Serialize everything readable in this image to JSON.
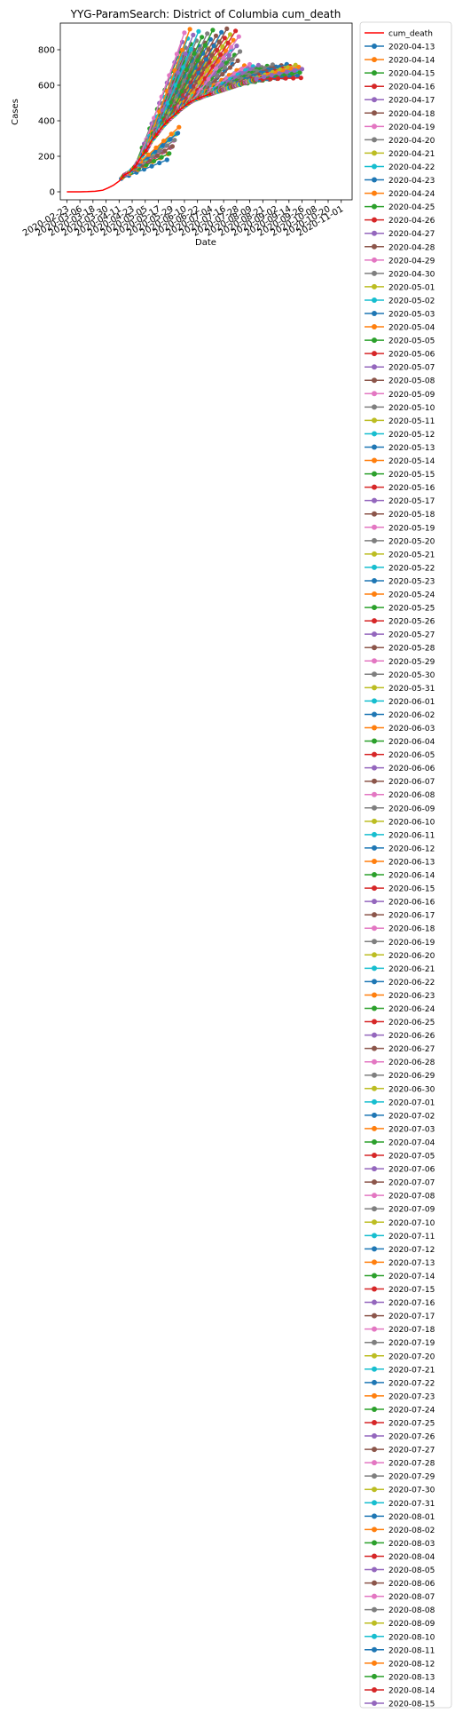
{
  "chart_data": {
    "type": "line",
    "title": "YYG-ParamSearch: District of Columbia cum_death",
    "xlabel": "Date",
    "ylabel": "Cases",
    "ylim": [
      -45,
      950
    ],
    "xlim": [
      "2020-02-17",
      "2020-11-11"
    ],
    "grid": false,
    "legend_placement": "outside-right",
    "y_ticks": [
      0,
      200,
      400,
      600,
      800
    ],
    "x_ticks": [
      "2020-02-23",
      "2020-03-06",
      "2020-03-18",
      "2020-03-30",
      "2020-04-11",
      "2020-04-23",
      "2020-05-05",
      "2020-05-17",
      "2020-05-29",
      "2020-06-10",
      "2020-06-22",
      "2020-07-04",
      "2020-07-16",
      "2020-07-28",
      "2020-08-09",
      "2020-08-21",
      "2020-09-02",
      "2020-09-14",
      "2020-09-26",
      "2020-10-08",
      "2020-10-20",
      "2020-11-01"
    ],
    "observed_series": {
      "name": "cum_death",
      "color": "#ff0000",
      "x": [
        "2020-02-23",
        "2020-03-06",
        "2020-03-13",
        "2020-03-20",
        "2020-03-27",
        "2020-04-01",
        "2020-04-06",
        "2020-04-11",
        "2020-04-16",
        "2020-04-21",
        "2020-04-26",
        "2020-05-01",
        "2020-05-06",
        "2020-05-11",
        "2020-05-16",
        "2020-05-21",
        "2020-05-26",
        "2020-05-31",
        "2020-06-05",
        "2020-06-10",
        "2020-06-15",
        "2020-06-20",
        "2020-06-25",
        "2020-06-30",
        "2020-07-05"
      ],
      "values": [
        0,
        0,
        1,
        3,
        9,
        22,
        38,
        60,
        95,
        112,
        145,
        195,
        235,
        290,
        328,
        368,
        402,
        428,
        458,
        482,
        505,
        520,
        532,
        543,
        553
      ]
    },
    "forecast_color_cycle": [
      "#1f77b4",
      "#ff7f0e",
      "#2ca02c",
      "#d62728",
      "#9467bd",
      "#8c564b",
      "#e377c2",
      "#7f7f7f",
      "#bcbd22",
      "#17becf"
    ],
    "forecast_dates": [
      "2020-04-13",
      "2020-04-14",
      "2020-04-15",
      "2020-04-16",
      "2020-04-17",
      "2020-04-18",
      "2020-04-19",
      "2020-04-20",
      "2020-04-21",
      "2020-04-22",
      "2020-04-23",
      "2020-04-24",
      "2020-04-25",
      "2020-04-26",
      "2020-04-27",
      "2020-04-28",
      "2020-04-29",
      "2020-04-30",
      "2020-05-01",
      "2020-05-02",
      "2020-05-03",
      "2020-05-04",
      "2020-05-05",
      "2020-05-06",
      "2020-05-07",
      "2020-05-08",
      "2020-05-09",
      "2020-05-10",
      "2020-05-11",
      "2020-05-12",
      "2020-05-13",
      "2020-05-14",
      "2020-05-15",
      "2020-05-16",
      "2020-05-17",
      "2020-05-18",
      "2020-05-19",
      "2020-05-20",
      "2020-05-21",
      "2020-05-22",
      "2020-05-23",
      "2020-05-24",
      "2020-05-25",
      "2020-05-26",
      "2020-05-27",
      "2020-05-28",
      "2020-05-29",
      "2020-05-30",
      "2020-05-31",
      "2020-06-01",
      "2020-06-02",
      "2020-06-03",
      "2020-06-04",
      "2020-06-05",
      "2020-06-06",
      "2020-06-07",
      "2020-06-08",
      "2020-06-09",
      "2020-06-10",
      "2020-06-11",
      "2020-06-12",
      "2020-06-13",
      "2020-06-14",
      "2020-06-15",
      "2020-06-16",
      "2020-06-17",
      "2020-06-18",
      "2020-06-19",
      "2020-06-20",
      "2020-06-21",
      "2020-06-22",
      "2020-06-23",
      "2020-06-24",
      "2020-06-25",
      "2020-06-26",
      "2020-06-27",
      "2020-06-28",
      "2020-06-29",
      "2020-06-30",
      "2020-07-01",
      "2020-07-02",
      "2020-07-03",
      "2020-07-04",
      "2020-07-05",
      "2020-07-06",
      "2020-07-07",
      "2020-07-08",
      "2020-07-09",
      "2020-07-10",
      "2020-07-11",
      "2020-07-12",
      "2020-07-13",
      "2020-07-14",
      "2020-07-15",
      "2020-07-16",
      "2020-07-17",
      "2020-07-18",
      "2020-07-19",
      "2020-07-20",
      "2020-07-21",
      "2020-07-22",
      "2020-07-23",
      "2020-07-24",
      "2020-07-25",
      "2020-07-26",
      "2020-07-27",
      "2020-07-28",
      "2020-07-29",
      "2020-07-30",
      "2020-07-31",
      "2020-08-01",
      "2020-08-02",
      "2020-08-03",
      "2020-08-04",
      "2020-08-05",
      "2020-08-06",
      "2020-08-07",
      "2020-08-08",
      "2020-08-09",
      "2020-08-10",
      "2020-08-11",
      "2020-08-12",
      "2020-08-13",
      "2020-08-14",
      "2020-08-15"
    ],
    "forecast_shape": {
      "horizon_days": 42,
      "point_every_days": 7,
      "early_end_value": [
        180,
        340
      ],
      "mid_end_value": [
        700,
        920
      ],
      "late_end_value": [
        640,
        720
      ],
      "late_start_date": "2020-06-20"
    }
  }
}
